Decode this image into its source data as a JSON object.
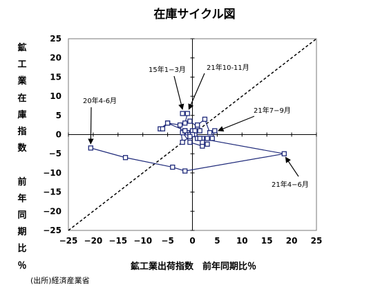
{
  "chart_data": {
    "type": "scatter",
    "title": "在庫サイクル図",
    "xlabel": "鉱工業出荷指数　前年同期比％",
    "ylabel": "鉱工業在庫指数　前年同期比％",
    "xlim": [
      -25,
      25
    ],
    "ylim": [
      -25,
      25
    ],
    "xticks": [
      "−25",
      "−20",
      "−15",
      "−10",
      "−5",
      "0",
      "5",
      "10",
      "15",
      "20",
      "25"
    ],
    "yticks": [
      "25",
      "20",
      "15",
      "10",
      "5",
      "0",
      "−5",
      "−10",
      "−15",
      "−20",
      "−25"
    ],
    "series": [
      {
        "x": [
          -2,
          -1,
          -1.5,
          -0.5,
          1,
          1.5,
          0.5,
          2,
          1,
          3,
          2,
          -0.5,
          -2,
          -1.5,
          -1,
          -0.5,
          0,
          0.5,
          0,
          -2,
          -2.5,
          -5,
          -6.5,
          -6,
          -5,
          -1.5,
          -0.5,
          1,
          2.5,
          3.5,
          4.5,
          4,
          3,
          2,
          1.5,
          18.5,
          -1.5,
          -4,
          -13.5,
          -20.5
        ],
        "y": [
          5.5,
          5.5,
          3,
          3.5,
          2,
          1,
          0,
          -1,
          -1,
          -2.5,
          -3,
          -2,
          0.5,
          1,
          0.5,
          0,
          1,
          1,
          0,
          -2,
          2.5,
          3,
          1.5,
          1.5,
          3,
          1,
          -0.5,
          2.5,
          4,
          0.5,
          1,
          -1,
          -1,
          -2,
          -1,
          -5,
          -9.5,
          -8.5,
          -6,
          -3.5
        ]
      }
    ],
    "reference_line": "y = x",
    "annotations": [
      "15年1−3月",
      "21年10-11月",
      "20年4-6月",
      "21年7−9月",
      "21年4−6月"
    ],
    "source": "(出所)経済産業省"
  },
  "colors": {
    "series": "#1f2a7a",
    "marker_fill": "#ffffff",
    "reference": "#000000"
  }
}
